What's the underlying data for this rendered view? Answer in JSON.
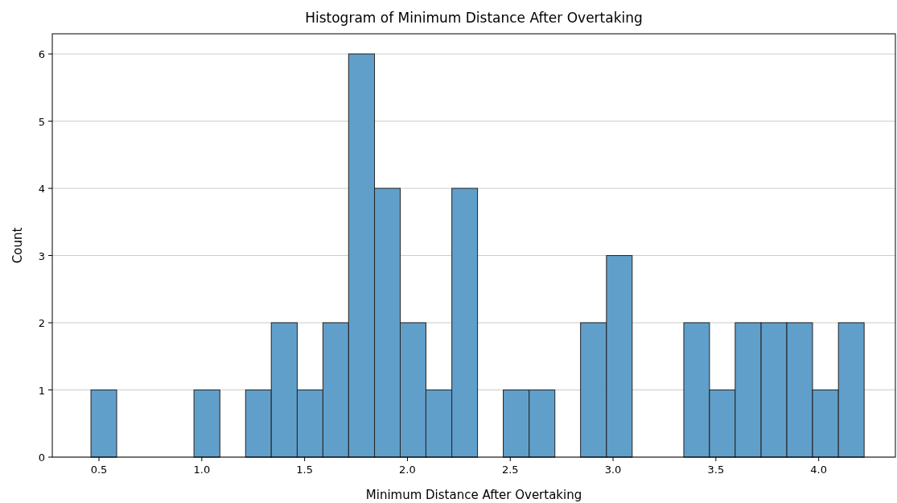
{
  "chart_data": {
    "type": "histogram",
    "title": "Histogram of Minimum Distance After Overtaking",
    "xlabel": "Minimum Distance After Overtaking",
    "ylabel": "Count",
    "bins": [
      0.461,
      0.586,
      0.712,
      0.837,
      0.962,
      1.088,
      1.213,
      1.338,
      1.464,
      1.589,
      1.714,
      1.84,
      1.965,
      2.09,
      2.216,
      2.341,
      2.466,
      2.592,
      2.717,
      2.842,
      2.968,
      3.093,
      3.218,
      3.344,
      3.469,
      3.594,
      3.72,
      3.845,
      3.97,
      4.096,
      4.221
    ],
    "values": [
      1,
      0,
      0,
      0,
      1,
      0,
      1,
      2,
      1,
      2,
      6,
      4,
      2,
      1,
      4,
      0,
      1,
      1,
      0,
      2,
      3,
      0,
      0,
      2,
      1,
      2,
      2,
      2,
      1,
      2
    ],
    "color": "#619fcb",
    "xlim": [
      0.273,
      4.373
    ],
    "xticks": [
      {
        "value": 0.5,
        "label": "0.5"
      },
      {
        "value": 1,
        "label": "1.0"
      },
      {
        "value": 1.5,
        "label": "1.5"
      },
      {
        "value": 2,
        "label": "2.0"
      },
      {
        "value": 2.5,
        "label": "2.5"
      },
      {
        "value": 3,
        "label": "3.0"
      },
      {
        "value": 3.5,
        "label": "3.5"
      },
      {
        "value": 4,
        "label": "4.0"
      }
    ],
    "ylim": [
      0,
      6.3
    ],
    "yticks": [
      0,
      1,
      2,
      3,
      4,
      5,
      6
    ],
    "grid": "y"
  }
}
